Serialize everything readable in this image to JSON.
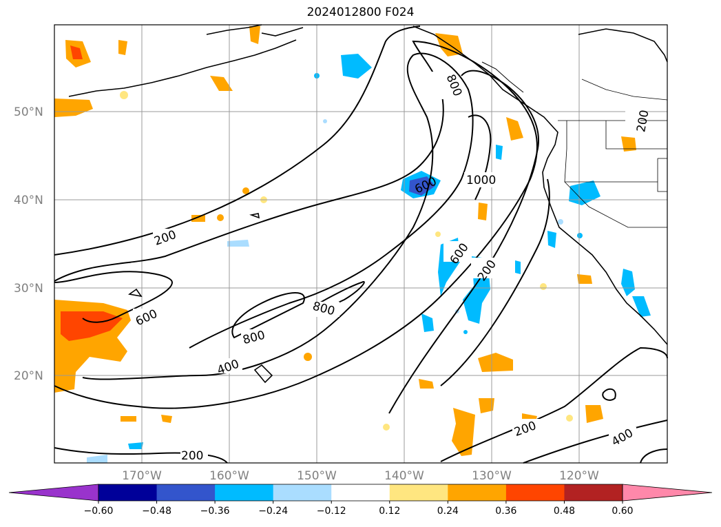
{
  "title": "2024012800 F024",
  "lat_labels": [
    "50°N",
    "40°N",
    "30°N",
    "20°N"
  ],
  "lon_labels": [
    "170°W",
    "160°W",
    "150°W",
    "140°W",
    "130°W",
    "120°W"
  ],
  "colorbar": {
    "levels": [
      "−0.60",
      "−0.48",
      "−0.36",
      "−0.24",
      "−0.12",
      "0.12",
      "0.24",
      "0.36",
      "0.48",
      "0.60"
    ],
    "colors": [
      "#9933cc",
      "#000099",
      "#3355cc",
      "#00bbff",
      "#aaddff",
      "#ffffff",
      "#ffe680",
      "#ffa500",
      "#ff4500",
      "#b22222",
      "#ff88aa"
    ]
  },
  "contour_labels": [
    "200",
    "400",
    "600",
    "800",
    "1000"
  ],
  "contour_label_instances": [
    "800",
    "600",
    "1000",
    "200",
    "600",
    "200",
    "600",
    "800",
    "800",
    "400",
    "200",
    "400",
    "200",
    "200"
  ]
}
